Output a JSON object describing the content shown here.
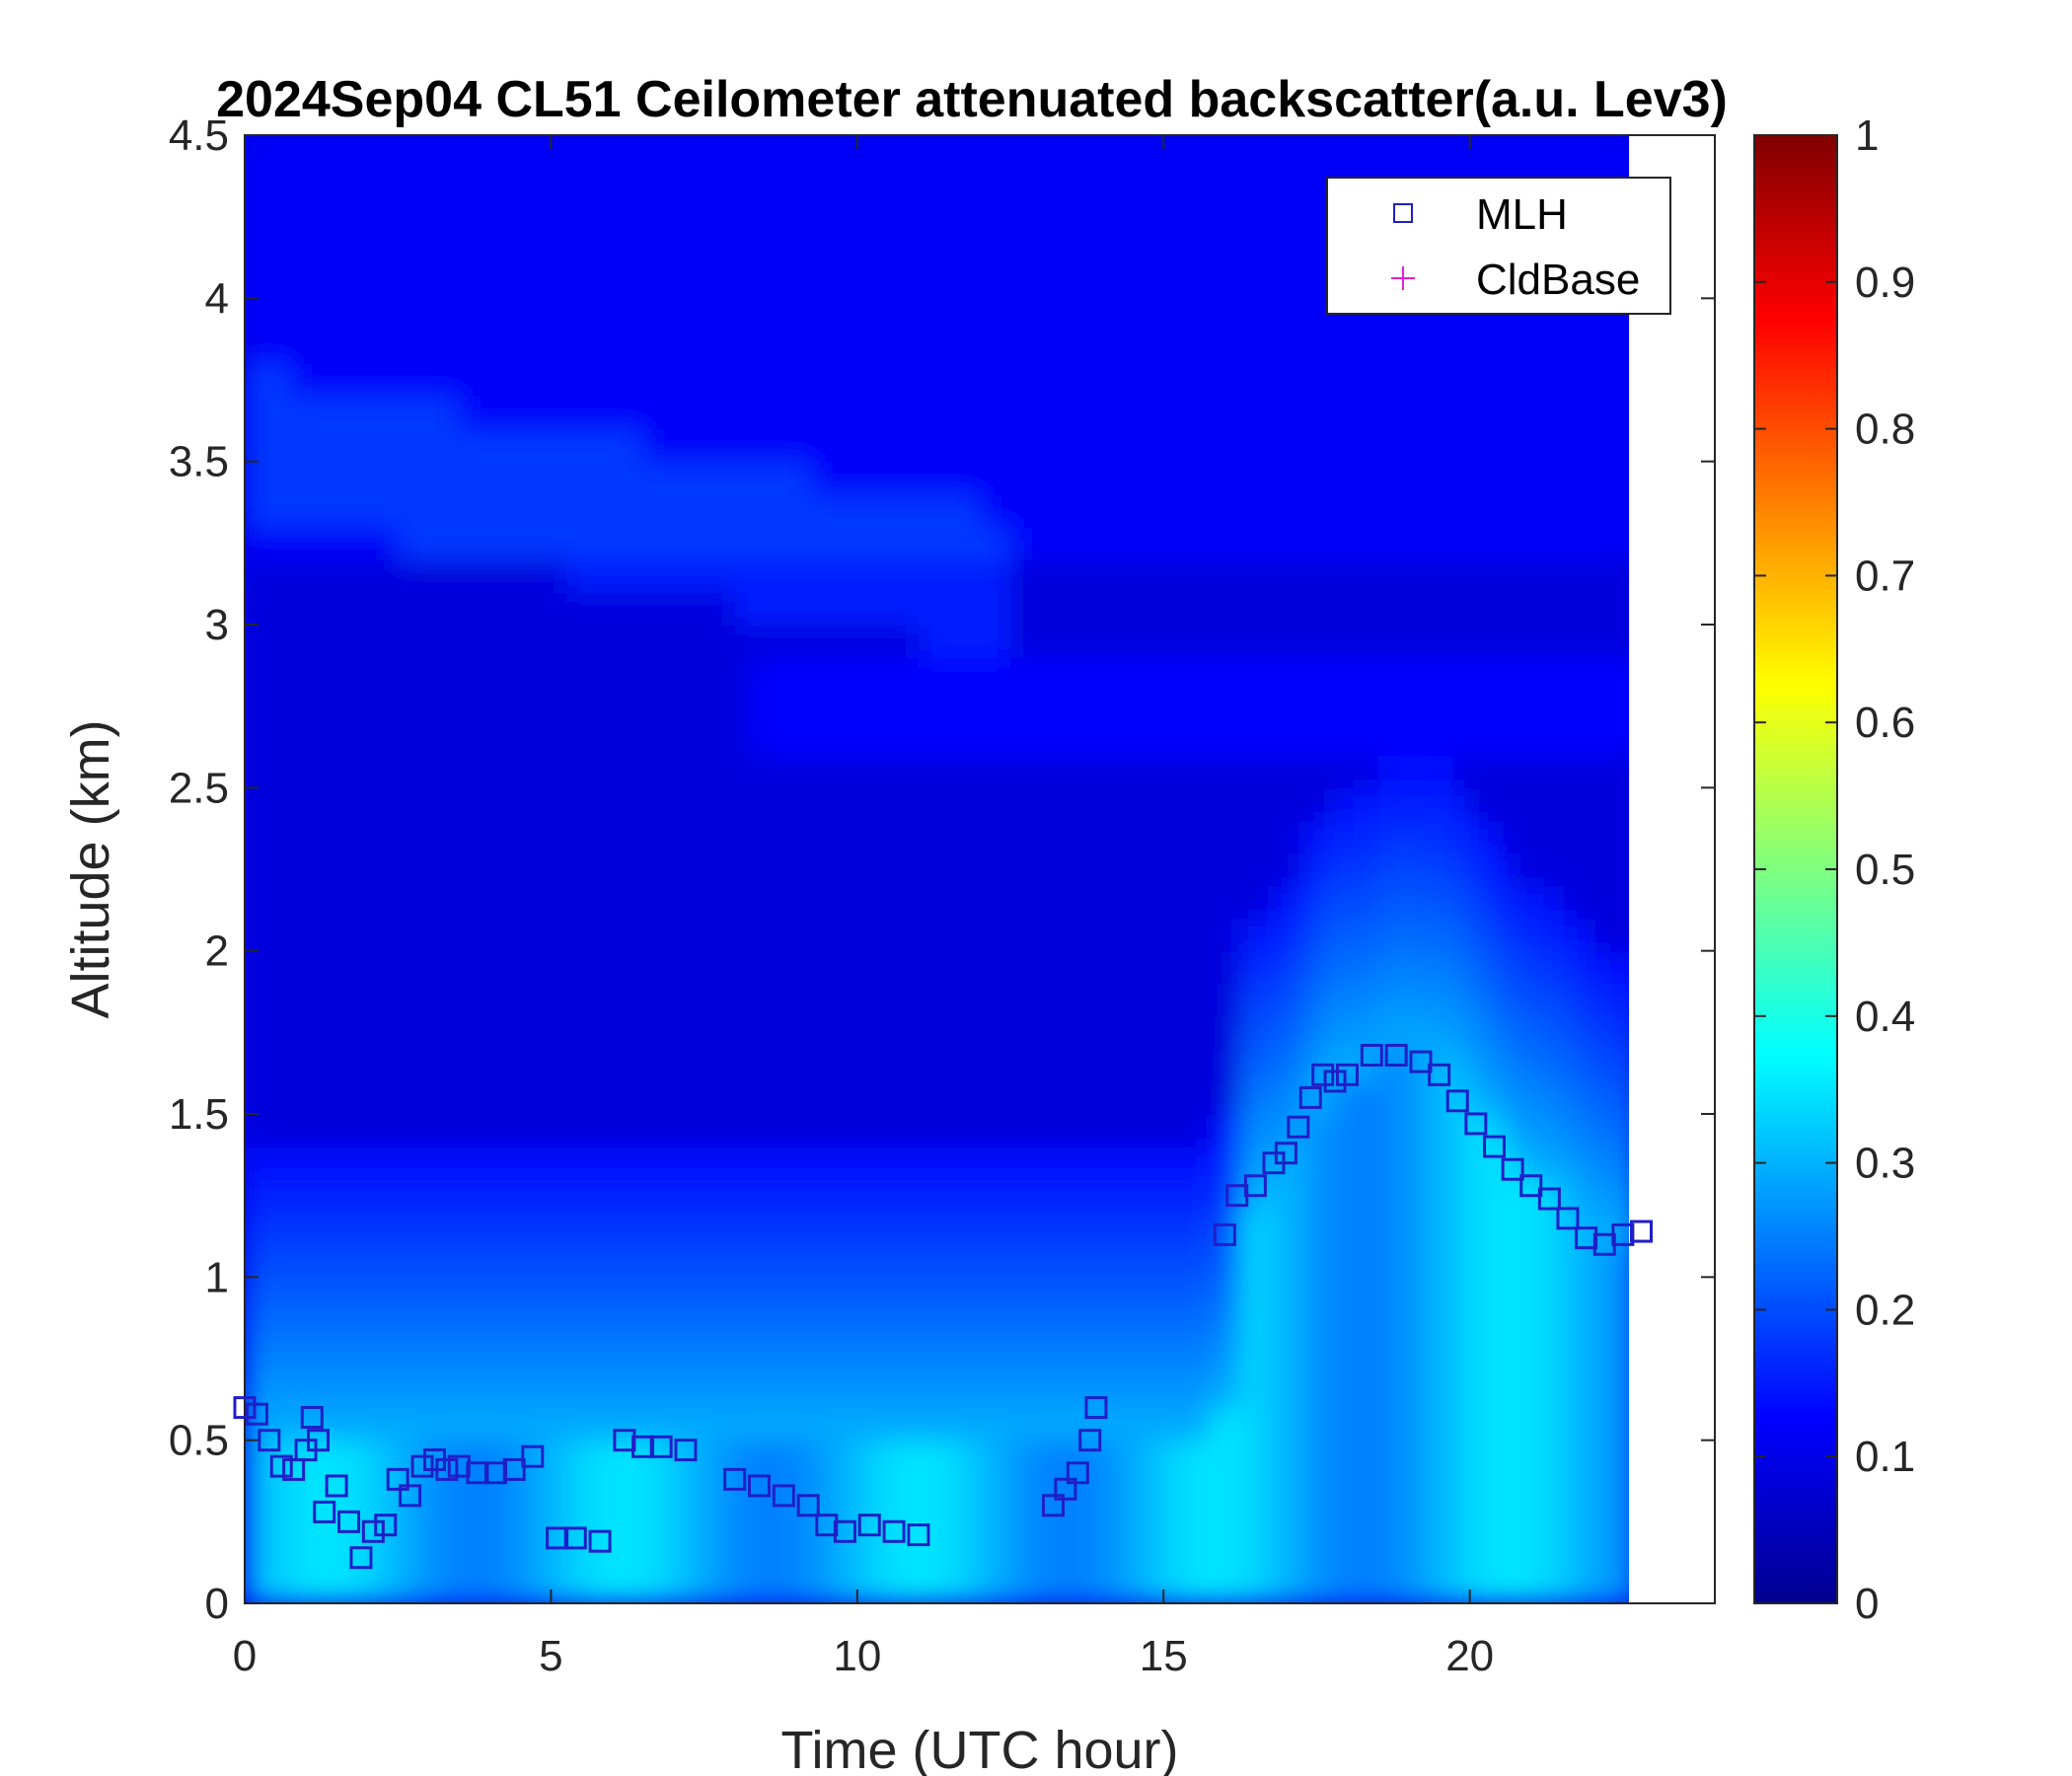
{
  "chart_data": {
    "type": "heatmap",
    "title": "2024Sep04 CL51 Ceilometer attenuated backscatter(a.u. Lev3)",
    "xlabel": "Time (UTC hour)",
    "ylabel": "Altitude (km)",
    "xlim": [
      0,
      24
    ],
    "ylim": [
      0,
      4.5
    ],
    "x_ticks": [
      "0",
      "5",
      "10",
      "15",
      "20"
    ],
    "y_ticks": [
      "0",
      "0.5",
      "1",
      "1.5",
      "2",
      "2.5",
      "3",
      "3.5",
      "4",
      "4.5"
    ],
    "colorbar": {
      "colormap": "jet",
      "range": [
        0,
        1
      ],
      "ticks": [
        "0",
        "0.1",
        "0.2",
        "0.3",
        "0.4",
        "0.5",
        "0.6",
        "0.7",
        "0.8",
        "0.9",
        "1"
      ]
    },
    "data_end_hour": 22.6,
    "legend": {
      "placement": "top-right",
      "entries": [
        {
          "name": "MLH",
          "marker": "square",
          "color": "#1f1fc8"
        },
        {
          "name": "CldBase",
          "marker": "plus",
          "color": "#e020e0"
        }
      ]
    },
    "series": [
      {
        "name": "MLH",
        "x": [
          0.0,
          0.2,
          0.4,
          0.6,
          0.8,
          1.0,
          1.1,
          1.2,
          1.3,
          1.5,
          1.7,
          1.9,
          2.1,
          2.3,
          2.5,
          2.7,
          2.9,
          3.1,
          3.3,
          3.5,
          3.8,
          4.1,
          4.4,
          4.7,
          5.1,
          5.4,
          5.8,
          6.2,
          6.5,
          6.8,
          7.2,
          8.0,
          8.4,
          8.8,
          9.2,
          9.5,
          9.8,
          10.2,
          10.6,
          11.0,
          13.2,
          13.4,
          13.6,
          13.8,
          13.9,
          16.0,
          16.2,
          16.5,
          16.8,
          17.0,
          17.2,
          17.4,
          17.6,
          17.8,
          18.0,
          18.4,
          18.8,
          19.2,
          19.5,
          19.8,
          20.1,
          20.4,
          20.7,
          21.0,
          21.3,
          21.6,
          21.9,
          22.2,
          22.5,
          22.8
        ],
        "y": [
          0.6,
          0.58,
          0.5,
          0.42,
          0.41,
          0.47,
          0.57,
          0.5,
          0.28,
          0.36,
          0.25,
          0.14,
          0.22,
          0.24,
          0.38,
          0.33,
          0.42,
          0.44,
          0.41,
          0.42,
          0.4,
          0.4,
          0.41,
          0.45,
          0.2,
          0.2,
          0.19,
          0.5,
          0.48,
          0.48,
          0.47,
          0.38,
          0.36,
          0.33,
          0.3,
          0.24,
          0.22,
          0.24,
          0.22,
          0.21,
          0.3,
          0.35,
          0.4,
          0.5,
          0.6,
          1.13,
          1.25,
          1.28,
          1.35,
          1.38,
          1.46,
          1.55,
          1.62,
          1.6,
          1.62,
          1.68,
          1.68,
          1.66,
          1.62,
          1.54,
          1.47,
          1.4,
          1.33,
          1.28,
          1.24,
          1.18,
          1.12,
          1.1,
          1.13,
          1.14
        ]
      },
      {
        "name": "CldBase",
        "x": [],
        "y": []
      }
    ]
  }
}
